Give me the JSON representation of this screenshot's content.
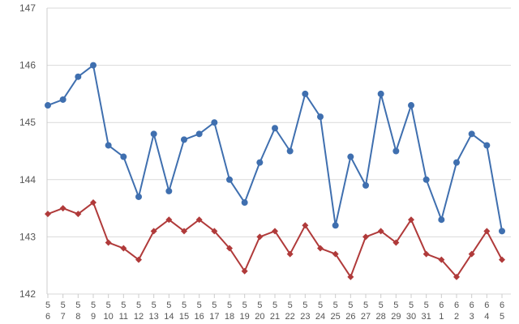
{
  "chart_data": {
    "type": "line",
    "categories": [
      [
        "5",
        "6"
      ],
      [
        "5",
        "7"
      ],
      [
        "5",
        "8"
      ],
      [
        "5",
        "9"
      ],
      [
        "5",
        "10"
      ],
      [
        "5",
        "11"
      ],
      [
        "5",
        "12"
      ],
      [
        "5",
        "13"
      ],
      [
        "5",
        "14"
      ],
      [
        "5",
        "15"
      ],
      [
        "5",
        "16"
      ],
      [
        "5",
        "17"
      ],
      [
        "5",
        "18"
      ],
      [
        "5",
        "19"
      ],
      [
        "5",
        "20"
      ],
      [
        "5",
        "21"
      ],
      [
        "5",
        "22"
      ],
      [
        "5",
        "23"
      ],
      [
        "5",
        "24"
      ],
      [
        "5",
        "25"
      ],
      [
        "5",
        "26"
      ],
      [
        "5",
        "27"
      ],
      [
        "5",
        "28"
      ],
      [
        "5",
        "29"
      ],
      [
        "5",
        "30"
      ],
      [
        "5",
        "31"
      ],
      [
        "6",
        "1"
      ],
      [
        "6",
        "2"
      ],
      [
        "6",
        "3"
      ],
      [
        "6",
        "4"
      ],
      [
        "6",
        "5"
      ]
    ],
    "series": [
      {
        "color": "#3f6faf",
        "marker": "circle",
        "values": [
          145.3,
          145.4,
          145.8,
          146.0,
          144.6,
          144.4,
          143.7,
          144.8,
          143.8,
          144.7,
          144.8,
          145.0,
          144.0,
          143.6,
          144.3,
          144.9,
          144.5,
          145.5,
          145.1,
          143.2,
          144.4,
          143.9,
          145.5,
          144.5,
          145.3,
          144.0,
          143.3,
          144.3,
          144.8,
          144.6,
          143.1
        ]
      },
      {
        "color": "#b03a3a",
        "marker": "diamond",
        "values": [
          143.4,
          143.5,
          143.4,
          143.6,
          142.9,
          142.8,
          142.6,
          143.1,
          143.3,
          143.1,
          143.3,
          143.1,
          142.8,
          142.4,
          143.0,
          143.1,
          142.7,
          143.2,
          142.8,
          142.7,
          142.3,
          143.0,
          143.1,
          142.9,
          143.3,
          142.7,
          142.6,
          142.3,
          142.7,
          143.1,
          142.6
        ]
      }
    ],
    "yticks": [
      "142",
      "143",
      "144",
      "145",
      "146",
      "147"
    ],
    "ylim": [
      142,
      147
    ],
    "grid": true,
    "legend": "none"
  }
}
